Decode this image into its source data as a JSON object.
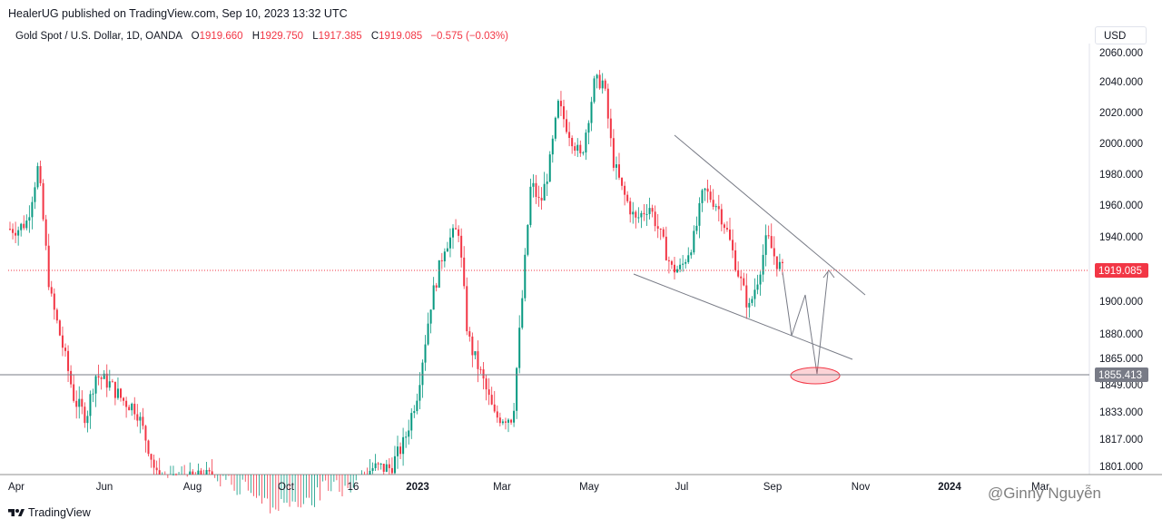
{
  "publisher": "HealerUG published on TradingView.com, Sep 10, 2023 13:32 UTC",
  "legend": {
    "symbol": "Gold Spot / U.S. Dollar, 1D, OANDA",
    "open_label": "O",
    "open": "1919.660",
    "high_label": "H",
    "high": "1929.750",
    "low_label": "L",
    "low": "1917.385",
    "close_label": "C",
    "close": "1919.085",
    "change": "−0.575 (−0.03%)"
  },
  "currency": "USD",
  "footer": {
    "logo_text": "TradingView",
    "logo_icon": "tradingview-logo-icon"
  },
  "watermark": "@Ginny Nguyễn",
  "chart_data": {
    "type": "candlestick",
    "y_ticks": [
      "2060.000",
      "2040.000",
      "2020.000",
      "2000.000",
      "1980.000",
      "1960.000",
      "1940.000",
      "1900.000",
      "1880.000",
      "1865.000",
      "1849.000",
      "1833.000",
      "1817.000",
      "1801.000"
    ],
    "x_ticks": [
      "Apr",
      "Jun",
      "Aug",
      "Oct",
      "16",
      "2023",
      "Mar",
      "May",
      "Jul",
      "Sep",
      "Nov",
      "2024",
      "Mar"
    ],
    "last_price": {
      "label": "1919.085",
      "value": 1919.085,
      "color": "#f23645"
    },
    "target_level": {
      "label": "1855.413",
      "value": 1855.413,
      "color": "#787b86"
    },
    "up_color": "#089981",
    "down_color": "#f23645",
    "annotations": {
      "wedge": "falling wedge trendlines",
      "path": "projected path to target then reversal up",
      "target_zone": "ellipse at target level"
    }
  }
}
